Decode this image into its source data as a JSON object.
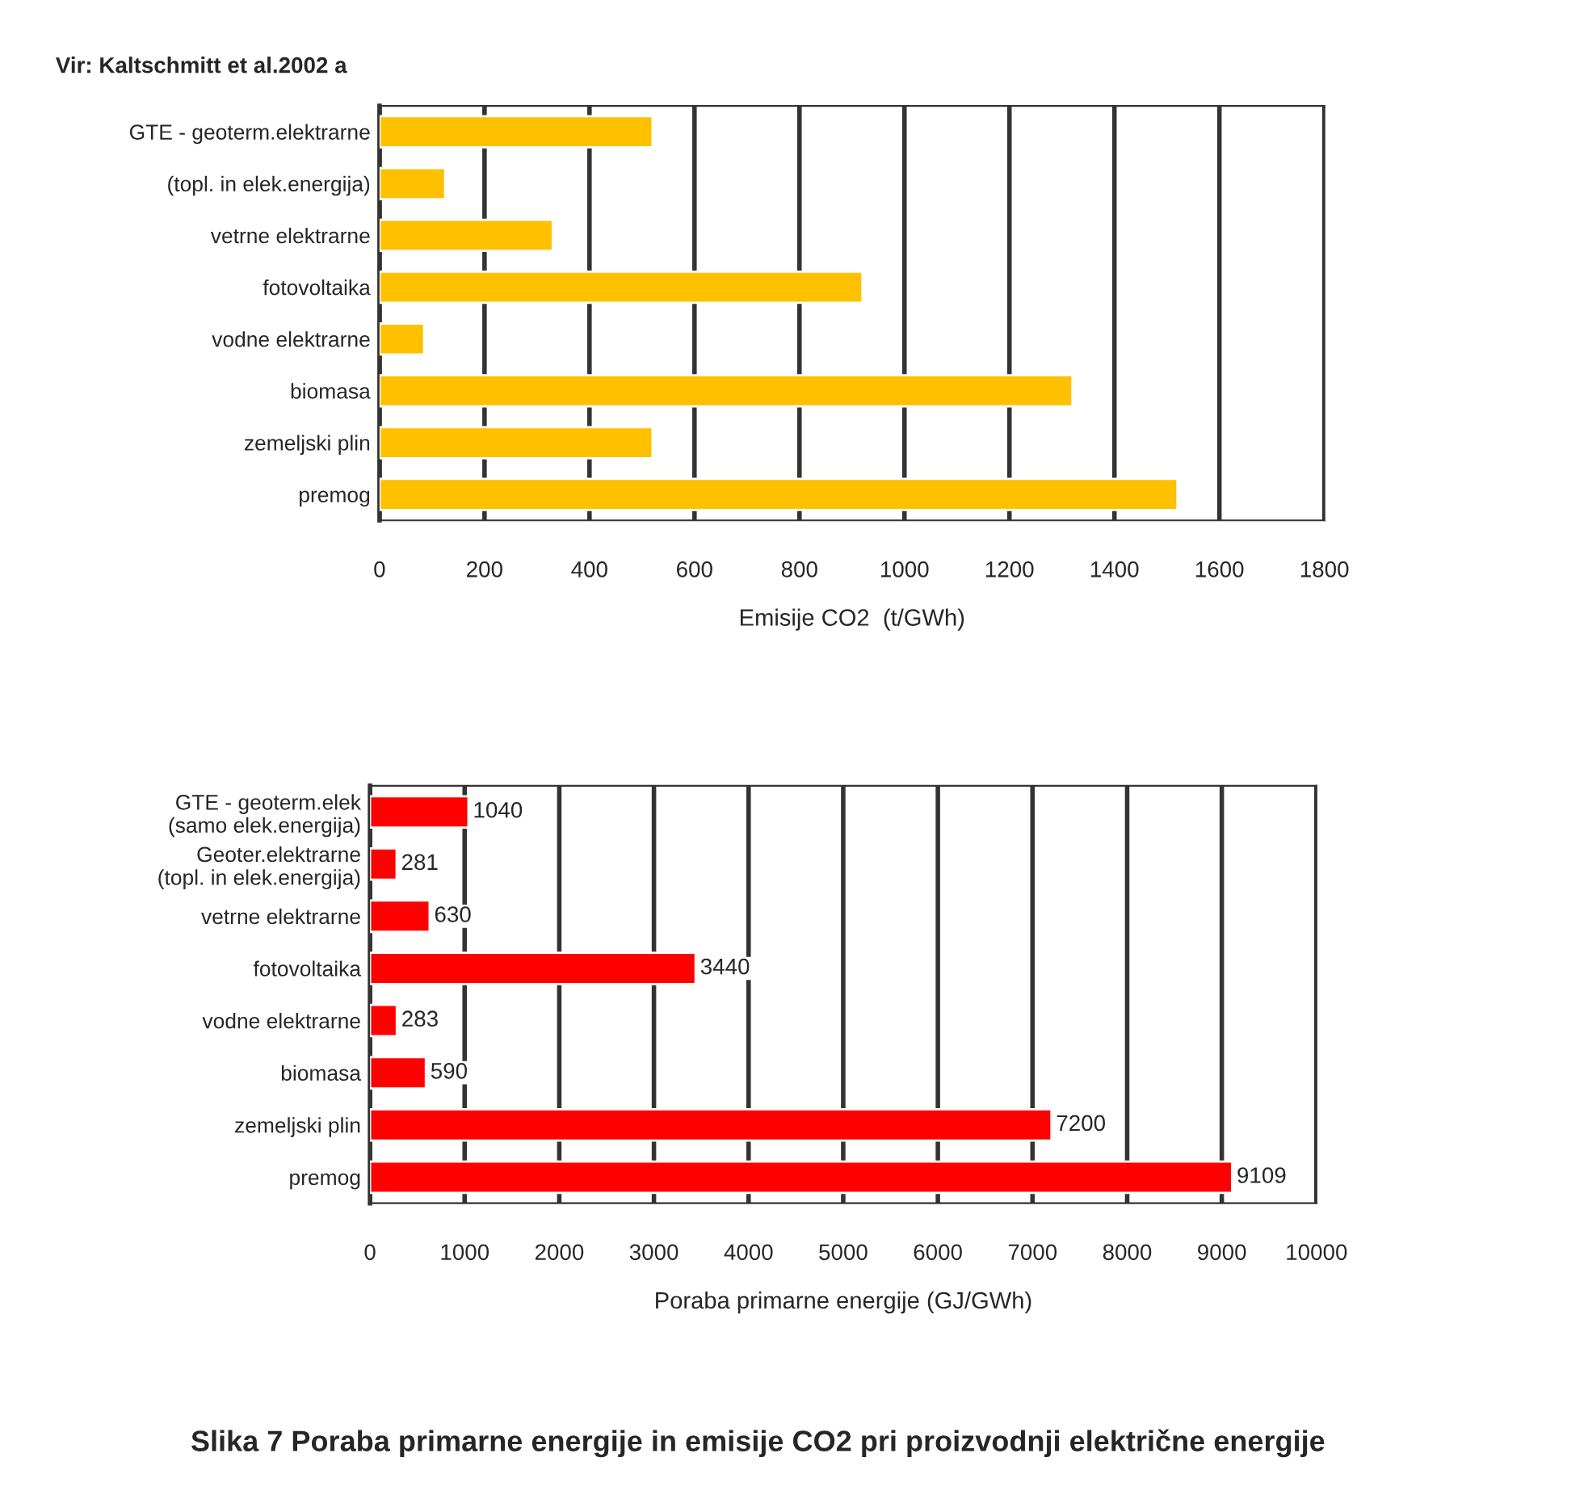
{
  "chart_data": [
    {
      "type": "bar",
      "orientation": "horizontal",
      "xlabel": "Emisije CO2  (t/GWh)",
      "categories": [
        "GTE - geoterm.elektrarne",
        "(topl. in elek.energija)",
        "vetrne elektrarne",
        "fotovoltaika",
        "vodne elektrarne",
        "biomasa",
        "zemeljski plin",
        "premog"
      ],
      "values": [
        520,
        125,
        330,
        920,
        85,
        1320,
        520,
        1520
      ],
      "color": "#ffc000",
      "xlim": [
        0,
        1800
      ],
      "xticks": [
        0,
        200,
        400,
        600,
        800,
        1000,
        1200,
        1400,
        1600,
        1800
      ],
      "grid": "x",
      "annotations": [
        "Vir: Kaltschmitt et al.2002 a"
      ]
    },
    {
      "type": "bar",
      "orientation": "horizontal",
      "xlabel": "Poraba primarne energije (GJ/GWh)",
      "categories": [
        "GTE - geoterm.elek\n(samo elek.energija)",
        "Geoter.elektrarne\n(topl. in elek.energija)",
        "vetrne elektrarne",
        "fotovoltaika",
        "vodne elektrarne",
        "biomasa",
        "zemeljski plin",
        "premog"
      ],
      "values": [
        1040,
        281,
        630,
        3440,
        283,
        590,
        7200,
        9109
      ],
      "color": "#ff0000",
      "data_labels": true,
      "xlim": [
        0,
        10000
      ],
      "xticks": [
        0,
        1000,
        2000,
        3000,
        4000,
        5000,
        6000,
        7000,
        8000,
        9000,
        10000
      ],
      "grid": "x",
      "annotations": [
        "Slika 7 Poraba primarne energije in emisije CO2 pri proizvodnji električne energije"
      ]
    }
  ]
}
